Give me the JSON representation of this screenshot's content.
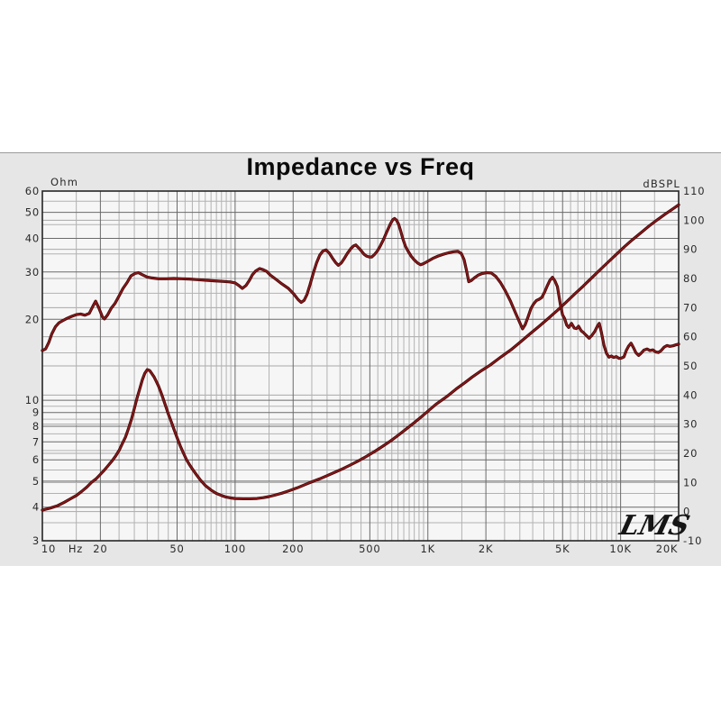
{
  "title": "Impedance vs Freq",
  "logo": "LMS",
  "colors": {
    "band_bg": "#e6e6e6",
    "plot_bg": "#f6f6f6",
    "grid_minor": "#b2b2b2",
    "grid_db": "#a8a8a8",
    "grid_major": "#6a6a6a",
    "frame": "#262626",
    "curve_core": "#8b1719",
    "curve_edge": "#3a0707",
    "label": "#2a2a2a"
  },
  "chart_data": {
    "type": "line",
    "title": "Impedance vs Freq",
    "grid": "log-log dense",
    "legend_position": "none",
    "x_axis": {
      "scale": "log",
      "min": 10,
      "max": 20000,
      "unit": "Hz",
      "ticks": [
        {
          "label": "10",
          "f": 10
        },
        {
          "label": "20",
          "f": 20
        },
        {
          "label": "50",
          "f": 50
        },
        {
          "label": "100",
          "f": 100
        },
        {
          "label": "200",
          "f": 200
        },
        {
          "label": "500",
          "f": 500
        },
        {
          "label": "1K",
          "f": 1000
        },
        {
          "label": "2K",
          "f": 2000
        },
        {
          "label": "5K",
          "f": 5000
        },
        {
          "label": "10K",
          "f": 10000
        },
        {
          "label": "20K",
          "f": 20000
        }
      ]
    },
    "left_axis": {
      "caption": "Ohm",
      "scale": "log",
      "min": 3,
      "max": 60,
      "ticks": [
        60,
        50,
        40,
        30,
        20,
        10,
        9,
        8,
        7,
        6,
        5,
        4,
        3
      ]
    },
    "right_axis": {
      "caption": "dBSPL",
      "scale": "linear",
      "min": -10,
      "max": 110,
      "tick_step": 10,
      "ticks": [
        110,
        100,
        90,
        80,
        70,
        60,
        50,
        40,
        30,
        20,
        10,
        0,
        -10
      ]
    },
    "series": [
      {
        "name": "impedance",
        "axis": "left",
        "unit": "ohm",
        "points": [
          [
            10,
            3.9
          ],
          [
            11,
            3.97
          ],
          [
            12,
            4.05
          ],
          [
            13,
            4.17
          ],
          [
            14,
            4.3
          ],
          [
            15,
            4.42
          ],
          [
            16,
            4.58
          ],
          [
            17,
            4.75
          ],
          [
            18,
            4.95
          ],
          [
            19,
            5.1
          ],
          [
            20,
            5.3
          ],
          [
            21,
            5.5
          ],
          [
            22,
            5.72
          ],
          [
            23,
            5.95
          ],
          [
            24,
            6.2
          ],
          [
            25,
            6.5
          ],
          [
            26,
            6.9
          ],
          [
            27,
            7.3
          ],
          [
            28,
            7.85
          ],
          [
            29,
            8.5
          ],
          [
            30,
            9.3
          ],
          [
            31,
            10.2
          ],
          [
            32,
            11.0
          ],
          [
            33,
            11.9
          ],
          [
            34,
            12.6
          ],
          [
            35,
            13.0
          ],
          [
            36,
            12.9
          ],
          [
            37,
            12.55
          ],
          [
            38,
            12.2
          ],
          [
            39,
            11.75
          ],
          [
            40,
            11.3
          ],
          [
            41,
            10.8
          ],
          [
            42,
            10.3
          ],
          [
            43,
            9.8
          ],
          [
            44,
            9.35
          ],
          [
            45,
            8.9
          ],
          [
            46,
            8.55
          ],
          [
            47,
            8.2
          ],
          [
            48,
            7.85
          ],
          [
            50,
            7.25
          ],
          [
            52,
            6.75
          ],
          [
            54,
            6.35
          ],
          [
            56,
            6.0
          ],
          [
            58,
            5.75
          ],
          [
            60,
            5.55
          ],
          [
            63,
            5.28
          ],
          [
            66,
            5.05
          ],
          [
            70,
            4.82
          ],
          [
            75,
            4.63
          ],
          [
            80,
            4.5
          ],
          [
            85,
            4.42
          ],
          [
            90,
            4.36
          ],
          [
            95,
            4.33
          ],
          [
            100,
            4.31
          ],
          [
            110,
            4.3
          ],
          [
            120,
            4.3
          ],
          [
            130,
            4.31
          ],
          [
            140,
            4.34
          ],
          [
            150,
            4.38
          ],
          [
            160,
            4.43
          ],
          [
            175,
            4.51
          ],
          [
            190,
            4.6
          ],
          [
            210,
            4.72
          ],
          [
            230,
            4.85
          ],
          [
            250,
            4.97
          ],
          [
            275,
            5.1
          ],
          [
            300,
            5.24
          ],
          [
            330,
            5.4
          ],
          [
            360,
            5.55
          ],
          [
            400,
            5.76
          ],
          [
            440,
            5.97
          ],
          [
            480,
            6.18
          ],
          [
            530,
            6.45
          ],
          [
            580,
            6.72
          ],
          [
            640,
            7.05
          ],
          [
            700,
            7.4
          ],
          [
            770,
            7.8
          ],
          [
            850,
            8.25
          ],
          [
            930,
            8.7
          ],
          [
            1000,
            9.1
          ],
          [
            1100,
            9.65
          ],
          [
            1250,
            10.3
          ],
          [
            1400,
            11.0
          ],
          [
            1550,
            11.6
          ],
          [
            1700,
            12.2
          ],
          [
            1900,
            12.9
          ],
          [
            2100,
            13.5
          ],
          [
            2400,
            14.5
          ],
          [
            2700,
            15.4
          ],
          [
            3000,
            16.4
          ],
          [
            3400,
            17.7
          ],
          [
            3800,
            18.9
          ],
          [
            4200,
            20.1
          ],
          [
            4700,
            21.6
          ],
          [
            5200,
            23.1
          ],
          [
            5800,
            24.9
          ],
          [
            6400,
            26.6
          ],
          [
            7000,
            28.3
          ],
          [
            7800,
            30.5
          ],
          [
            8600,
            32.6
          ],
          [
            9500,
            34.9
          ],
          [
            10500,
            37.3
          ],
          [
            11500,
            39.5
          ],
          [
            12600,
            41.7
          ],
          [
            14000,
            44.4
          ],
          [
            15500,
            46.9
          ],
          [
            17000,
            49.2
          ],
          [
            18500,
            51.3
          ],
          [
            20000,
            53.3
          ]
        ]
      },
      {
        "name": "spl",
        "axis": "right",
        "unit": "dBSPL",
        "points": [
          [
            10,
            55.3
          ],
          [
            10.4,
            55.8
          ],
          [
            10.8,
            58
          ],
          [
            11.2,
            61
          ],
          [
            11.7,
            63.5
          ],
          [
            12.2,
            64.8
          ],
          [
            12.8,
            65.6
          ],
          [
            13.4,
            66.3
          ],
          [
            14.2,
            67.0
          ],
          [
            15,
            67.6
          ],
          [
            15.8,
            67.8
          ],
          [
            16.6,
            67.4
          ],
          [
            17.5,
            68.0
          ],
          [
            18.3,
            70.5
          ],
          [
            18.9,
            72.2
          ],
          [
            19.6,
            70
          ],
          [
            20.5,
            66.8
          ],
          [
            21,
            66.1
          ],
          [
            21.8,
            67.5
          ],
          [
            22.8,
            69.9
          ],
          [
            23.8,
            71.4
          ],
          [
            25,
            74.0
          ],
          [
            26.2,
            76.6
          ],
          [
            27.5,
            78.6
          ],
          [
            28.8,
            80.9
          ],
          [
            30.2,
            81.7
          ],
          [
            31.5,
            82.0
          ],
          [
            33,
            81.3
          ],
          [
            35,
            80.5
          ],
          [
            37,
            80.2
          ],
          [
            40,
            79.9
          ],
          [
            44,
            79.9
          ],
          [
            48,
            80.0
          ],
          [
            53,
            79.9
          ],
          [
            58,
            79.8
          ],
          [
            64,
            79.6
          ],
          [
            70,
            79.4
          ],
          [
            78,
            79.2
          ],
          [
            86,
            79.0
          ],
          [
            95,
            78.8
          ],
          [
            100,
            78.5
          ],
          [
            105,
            77.5
          ],
          [
            109,
            76.6
          ],
          [
            114,
            77.6
          ],
          [
            119,
            79.5
          ],
          [
            123,
            81.3
          ],
          [
            128,
            82.6
          ],
          [
            134,
            83.4
          ],
          [
            140,
            83.0
          ],
          [
            146,
            82.4
          ],
          [
            152,
            81.2
          ],
          [
            163,
            79.7
          ],
          [
            175,
            78.1
          ],
          [
            189,
            76.6
          ],
          [
            202,
            74.6
          ],
          [
            212,
            72.8
          ],
          [
            220,
            71.8
          ],
          [
            228,
            72.5
          ],
          [
            236,
            74.5
          ],
          [
            245,
            78
          ],
          [
            255,
            82
          ],
          [
            265,
            85.5
          ],
          [
            275,
            88
          ],
          [
            285,
            89.4
          ],
          [
            296,
            89.8
          ],
          [
            308,
            88.7
          ],
          [
            320,
            87
          ],
          [
            332,
            85.5
          ],
          [
            343,
            84.5
          ],
          [
            355,
            85.3
          ],
          [
            368,
            86.8
          ],
          [
            382,
            88.6
          ],
          [
            400,
            90.4
          ],
          [
            412,
            91.2
          ],
          [
            423,
            91.5
          ],
          [
            436,
            90.6
          ],
          [
            450,
            89.6
          ],
          [
            465,
            88.4
          ],
          [
            480,
            87.7
          ],
          [
            497,
            87.4
          ],
          [
            512,
            87.4
          ],
          [
            528,
            88.2
          ],
          [
            545,
            89.3
          ],
          [
            565,
            91
          ],
          [
            590,
            93.5
          ],
          [
            615,
            96.3
          ],
          [
            640,
            98.8
          ],
          [
            658,
            100.2
          ],
          [
            672,
            100.6
          ],
          [
            688,
            100.0
          ],
          [
            705,
            98.6
          ],
          [
            722,
            96.4
          ],
          [
            742,
            93.6
          ],
          [
            765,
            91
          ],
          [
            790,
            89.3
          ],
          [
            820,
            87.6
          ],
          [
            850,
            86.4
          ],
          [
            885,
            85.3
          ],
          [
            917,
            84.7
          ],
          [
            950,
            85.1
          ],
          [
            1000,
            85.9
          ],
          [
            1060,
            86.9
          ],
          [
            1130,
            87.7
          ],
          [
            1200,
            88.3
          ],
          [
            1280,
            88.8
          ],
          [
            1360,
            89.2
          ],
          [
            1430,
            89.3
          ],
          [
            1490,
            88.6
          ],
          [
            1540,
            86.5
          ],
          [
            1590,
            82.5
          ],
          [
            1630,
            78.9
          ],
          [
            1680,
            79.3
          ],
          [
            1740,
            80.2
          ],
          [
            1820,
            81.1
          ],
          [
            1910,
            81.7
          ],
          [
            2020,
            82.0
          ],
          [
            2130,
            81.9
          ],
          [
            2250,
            80.7
          ],
          [
            2380,
            78.6
          ],
          [
            2520,
            75.8
          ],
          [
            2680,
            72.3
          ],
          [
            2850,
            68.2
          ],
          [
            3000,
            64.8
          ],
          [
            3100,
            62.7
          ],
          [
            3200,
            64.2
          ],
          [
            3310,
            66.8
          ],
          [
            3420,
            69.6
          ],
          [
            3530,
            71.2
          ],
          [
            3650,
            72.4
          ],
          [
            3780,
            72.9
          ],
          [
            3900,
            73.5
          ],
          [
            4030,
            75.3
          ],
          [
            4170,
            77.6
          ],
          [
            4300,
            79.4
          ],
          [
            4430,
            80.4
          ],
          [
            4560,
            79.2
          ],
          [
            4700,
            77.2
          ],
          [
            4870,
            71.0
          ],
          [
            5000,
            67.5
          ],
          [
            5120,
            66.3
          ],
          [
            5250,
            64.0
          ],
          [
            5380,
            63.2
          ],
          [
            5560,
            64.6
          ],
          [
            5750,
            63.0
          ],
          [
            5900,
            62.8
          ],
          [
            6050,
            63.6
          ],
          [
            6250,
            62.0
          ],
          [
            6400,
            61.5
          ],
          [
            6600,
            60.6
          ],
          [
            6870,
            59.5
          ],
          [
            7100,
            60.5
          ],
          [
            7340,
            61.8
          ],
          [
            7600,
            63.8
          ],
          [
            7750,
            64.6
          ],
          [
            7950,
            61.5
          ],
          [
            8200,
            57.0
          ],
          [
            8450,
            54.3
          ],
          [
            8700,
            53.0
          ],
          [
            8950,
            53.4
          ],
          [
            9200,
            52.9
          ],
          [
            9500,
            53.2
          ],
          [
            9800,
            52.6
          ],
          [
            10100,
            52.7
          ],
          [
            10400,
            53.1
          ],
          [
            10700,
            55.3
          ],
          [
            11000,
            56.8
          ],
          [
            11330,
            57.8
          ],
          [
            11650,
            56.3
          ],
          [
            12000,
            54.5
          ],
          [
            12400,
            53.6
          ],
          [
            12800,
            54.4
          ],
          [
            13200,
            55.4
          ],
          [
            13700,
            55.8
          ],
          [
            14200,
            55.3
          ],
          [
            14700,
            55.5
          ],
          [
            15200,
            54.8
          ],
          [
            15700,
            54.6
          ],
          [
            16200,
            55.2
          ],
          [
            16800,
            56.4
          ],
          [
            17400,
            57.0
          ],
          [
            18000,
            56.7
          ],
          [
            18700,
            56.9
          ],
          [
            19300,
            57.2
          ],
          [
            20000,
            57.5
          ]
        ]
      }
    ]
  }
}
